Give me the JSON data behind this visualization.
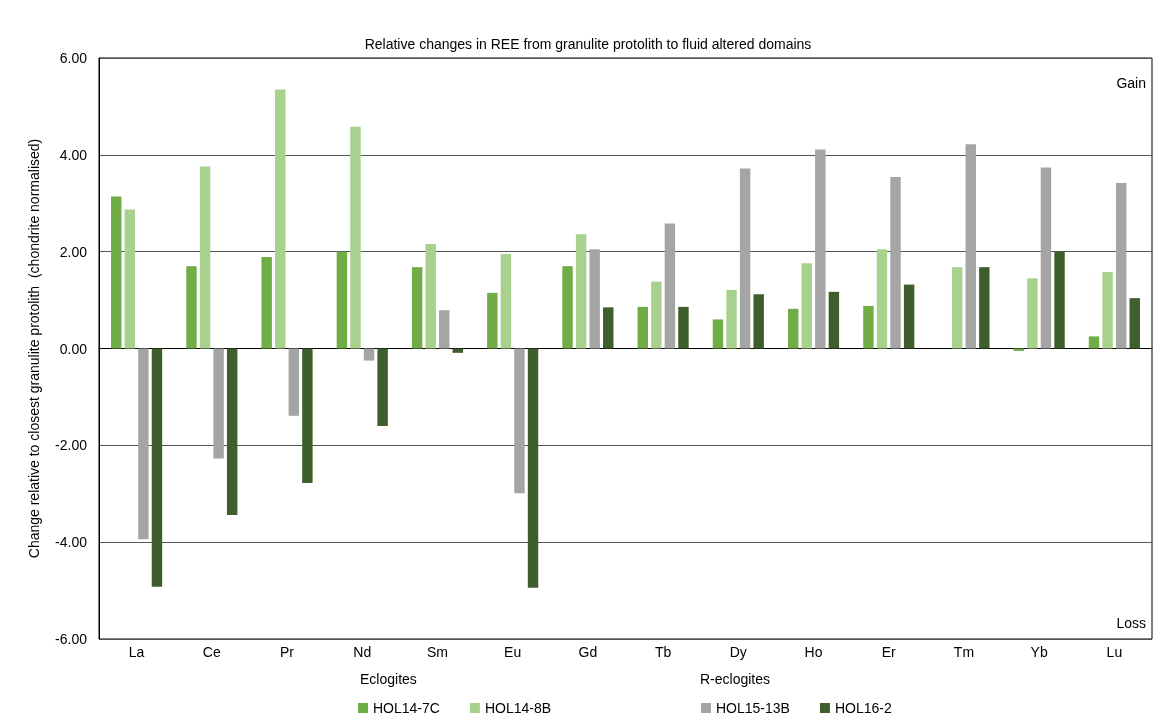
{
  "chart_data": {
    "type": "bar",
    "title": "Relative changes in REE from granulite protolith to fluid altered domains",
    "ylabel": "Change relative to closest granulite protolith  (chondrite normalised)",
    "categories": [
      "La",
      "Ce",
      "Pr",
      "Nd",
      "Sm",
      "Eu",
      "Gd",
      "Tb",
      "Dy",
      "Ho",
      "Er",
      "Tm",
      "Yb",
      "Lu"
    ],
    "series": [
      {
        "name": "HOL14-7C",
        "color": "#70ad47",
        "values": [
          3.14,
          1.7,
          1.89,
          2.0,
          1.68,
          1.15,
          1.7,
          0.86,
          0.6,
          0.82,
          0.88,
          null,
          -0.05,
          0.25
        ]
      },
      {
        "name": "HOL14-8B",
        "color": "#a9d18e",
        "values": [
          2.87,
          3.76,
          5.35,
          4.58,
          2.16,
          1.95,
          2.36,
          1.38,
          1.21,
          1.76,
          2.05,
          1.68,
          1.45,
          1.58
        ]
      },
      {
        "name": "HOL15-13B",
        "color": "#a5a5a5",
        "values": [
          -3.94,
          -2.27,
          -1.39,
          -0.25,
          0.79,
          -2.99,
          2.05,
          2.58,
          3.72,
          4.11,
          3.54,
          4.22,
          3.74,
          3.42
        ]
      },
      {
        "name": "HOL16-2",
        "color": "#3e5f2b",
        "values": [
          -4.92,
          -3.44,
          -2.78,
          -1.6,
          -0.09,
          -4.94,
          0.85,
          0.86,
          1.12,
          1.17,
          1.32,
          1.68,
          2.0,
          1.04
        ]
      }
    ],
    "ylim": [
      -6,
      6
    ],
    "yticks": [
      {
        "value": -6,
        "label": "-6.00"
      },
      {
        "value": -4,
        "label": "-4.00"
      },
      {
        "value": -2,
        "label": "-2.00"
      },
      {
        "value": 0,
        "label": "0.00"
      },
      {
        "value": 2,
        "label": "2.00"
      },
      {
        "value": 4,
        "label": "4.00"
      },
      {
        "value": 6,
        "label": "6.00"
      }
    ],
    "grid": "y",
    "legend": "bottom",
    "annotations": [
      "Gain",
      "Loss",
      "Eclogites",
      "R-eclogites"
    ]
  }
}
